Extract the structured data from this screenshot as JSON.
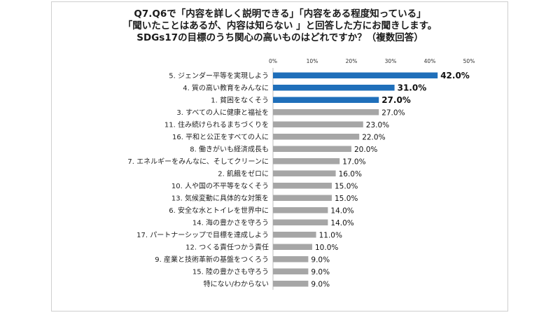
{
  "title_lines": [
    "Q7.Q6で「内容を詳しく説明できる」「内容をある程度知っている」",
    "「聞いたことはあるが、内容は知らない 」と回答した方にお聞きします。",
    "SDGs17の目標のうち関心の高いものはどれですか？（複数回答）"
  ],
  "colors": {
    "highlight": "#1f6fba",
    "default": "#a6a6a6"
  },
  "chart_data": {
    "type": "bar",
    "orientation": "horizontal",
    "xlim": [
      0,
      50
    ],
    "ticks": [
      "0%",
      "10%",
      "20%",
      "30%",
      "40%",
      "50%"
    ],
    "grid": false,
    "categories": [
      "5. ジェンダー平等を実現しよう",
      "4. 質の高い教育をみんなに",
      "1. 貧困をなくそう",
      "3. すべての人に健康と福祉を",
      "11. 住み続けられるまちづくりを",
      "16. 平和と公正をすべての人に",
      "8. 働きがいも経済成長も",
      "7. エネルギーをみんなに、そしてクリーンに",
      "2. 飢餓をゼロに",
      "10. 人や国の不平等をなくそう",
      "13. 気候変動に具体的な対策を",
      "6. 安全な水とトイレを世界中に",
      "14. 海の豊かさを守ろう",
      "17. パートナーシップで目標を達成しよう",
      "12. つくる責任つかう責任",
      "9. 産業と技術革新の基盤をつくろう",
      "15. 陸の豊かさも守ろう",
      "特にない/わからない"
    ],
    "values": [
      42.0,
      31.0,
      27.0,
      27.0,
      23.0,
      22.0,
      20.0,
      17.0,
      16.0,
      15.0,
      15.0,
      14.0,
      14.0,
      11.0,
      10.0,
      9.0,
      9.0,
      9.0
    ],
    "labels": [
      "42.0%",
      "31.0%",
      "27.0%",
      "27.0%",
      "23.0%",
      "22.0%",
      "20.0%",
      "17.0%",
      "16.0%",
      "15.0%",
      "15.0%",
      "14.0%",
      "14.0%",
      "11.0%",
      "10.0%",
      "9.0%",
      "9.0%",
      "9.0%"
    ],
    "highlighted": [
      true,
      true,
      true,
      false,
      false,
      false,
      false,
      false,
      false,
      false,
      false,
      false,
      false,
      false,
      false,
      false,
      false,
      false
    ]
  }
}
